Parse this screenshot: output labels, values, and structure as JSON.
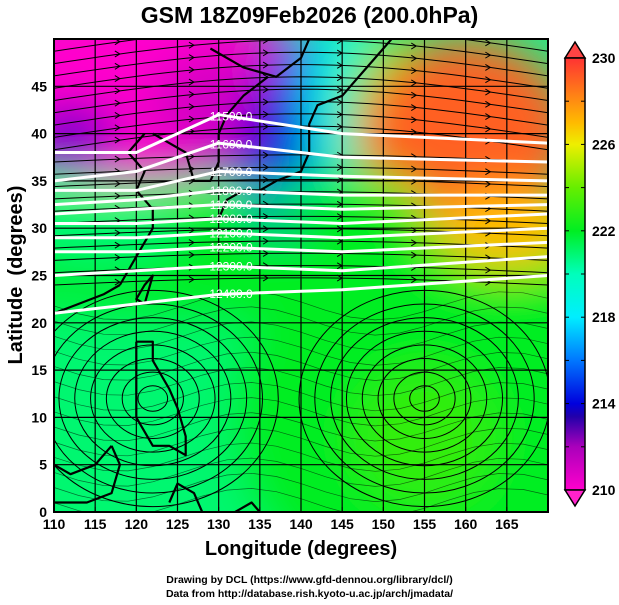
{
  "chart_data": {
    "type": "heatmap",
    "title": "GSM 18Z09Feb2026 (200.0hPa)",
    "xlabel": "Longitude (degrees)",
    "ylabel": "Latitude  (degrees)",
    "xlim": [
      110,
      170
    ],
    "ylim": [
      0,
      50
    ],
    "x_ticks": [
      "110",
      "115",
      "120",
      "125",
      "130",
      "135",
      "140",
      "145",
      "150",
      "155",
      "160",
      "165"
    ],
    "y_ticks": [
      "0",
      "5",
      "10",
      "15",
      "20",
      "25",
      "30",
      "35",
      "40",
      "45"
    ],
    "grid": true,
    "colorbar": {
      "placement": "right",
      "range": [
        210,
        230
      ],
      "tick_labels": [
        "230",
        "226",
        "222",
        "218",
        "214",
        "210"
      ],
      "colors": [
        "#ff00cc",
        "#8800cc",
        "#0000cc",
        "#0066ff",
        "#00eeff",
        "#00ffbb",
        "#00ee33",
        "#88ee00",
        "#eeee00",
        "#ff9900",
        "#ff3333"
      ],
      "extend": "both"
    },
    "fill_field": "temperature (K)",
    "temperature_regions": [
      {
        "region": "NW 110-135E, 38-50N",
        "value": 210
      },
      {
        "region": "Japan 135-140E, 30-45N",
        "value": 214
      },
      {
        "region": "145-150E, 35-50N",
        "value": 223
      },
      {
        "region": "NE 155-170E, 35-48N",
        "value": 229
      },
      {
        "region": "tropics 110-170E, 0-25N",
        "value": 220
      },
      {
        "region": "155E 5N",
        "value": 223
      }
    ],
    "contours": {
      "field": "geopotential height (m)",
      "labels": [
        "11500.0",
        "11600.0",
        "11700.0",
        "11800.0",
        "11900.0",
        "12000.0",
        "12100.0",
        "12200.0",
        "12300.0",
        "12400.0"
      ],
      "levels": [
        {
          "value": 11500,
          "lat_at": [
            [
              110,
              38
            ],
            [
              120,
              38
            ],
            [
              130,
              42
            ],
            [
              145,
              40
            ],
            [
              170,
              39
            ]
          ]
        },
        {
          "value": 11600,
          "lat_at": [
            [
              110,
              35
            ],
            [
              120,
              36
            ],
            [
              130,
              39
            ],
            [
              145,
              37.5
            ],
            [
              170,
              37
            ]
          ]
        },
        {
          "value": 11700,
          "lat_at": [
            [
              110,
              34
            ],
            [
              120,
              34
            ],
            [
              130,
              36
            ],
            [
              145,
              35.5
            ],
            [
              170,
              35
            ]
          ]
        },
        {
          "value": 11800,
          "lat_at": [
            [
              110,
              32.5
            ],
            [
              120,
              33
            ],
            [
              130,
              34
            ],
            [
              145,
              33.5
            ],
            [
              170,
              33.5
            ]
          ]
        },
        {
          "value": 11900,
          "lat_at": [
            [
              110,
              31.5
            ],
            [
              120,
              32
            ],
            [
              130,
              32.5
            ],
            [
              145,
              32
            ],
            [
              170,
              32.5
            ]
          ]
        },
        {
          "value": 12000,
          "lat_at": [
            [
              110,
              30.5
            ],
            [
              120,
              30.5
            ],
            [
              130,
              31
            ],
            [
              145,
              30.5
            ],
            [
              170,
              31.5
            ]
          ]
        },
        {
          "value": 12100,
          "lat_at": [
            [
              110,
              29
            ],
            [
              120,
              29
            ],
            [
              130,
              29.5
            ],
            [
              145,
              29
            ],
            [
              170,
              30
            ]
          ]
        },
        {
          "value": 12200,
          "lat_at": [
            [
              110,
              27.5
            ],
            [
              120,
              27.5
            ],
            [
              130,
              28
            ],
            [
              145,
              27.5
            ],
            [
              170,
              28.5
            ]
          ]
        },
        {
          "value": 12300,
          "lat_at": [
            [
              110,
              25
            ],
            [
              120,
              25.5
            ],
            [
              130,
              26
            ],
            [
              145,
              25.5
            ],
            [
              170,
              27
            ]
          ]
        },
        {
          "value": 12400,
          "lat_at": [
            [
              110,
              21
            ],
            [
              120,
              22
            ],
            [
              130,
              23
            ],
            [
              145,
              23.5
            ],
            [
              170,
              25
            ]
          ]
        }
      ]
    },
    "streamlines": "wind vectors at 200hPa; westerly jet 25-45N, anticyclonic circulation near 155E 12N"
  },
  "credits": {
    "line1": "Drawing by DCL (https://www.gfd-dennou.org/library/dcl/)",
    "line2": "Data from http://database.rish.kyoto-u.ac.jp/arch/jmadata/"
  }
}
